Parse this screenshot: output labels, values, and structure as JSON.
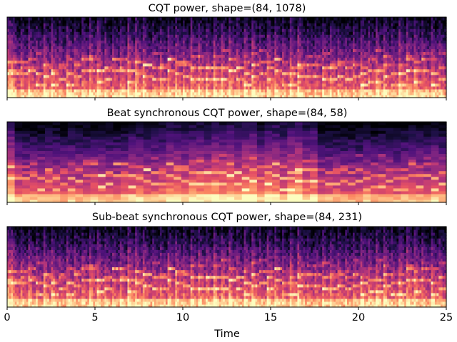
{
  "chart_data": [
    {
      "type": "heatmap",
      "title": "CQT power, shape=(84, 1078)",
      "shape": [
        84,
        1078
      ],
      "colormap": "magma",
      "xlim": [
        0,
        25
      ],
      "xticks": [
        0,
        5,
        10,
        15,
        20,
        25
      ],
      "tick_labels_visible": false,
      "yticks_visible": false
    },
    {
      "type": "heatmap",
      "title": "Beat synchronous CQT power, shape=(84, 58)",
      "shape": [
        84,
        58
      ],
      "colormap": "magma",
      "xlim": [
        0,
        25
      ],
      "xticks": [
        0,
        5,
        10,
        15,
        20,
        25
      ],
      "tick_labels_visible": false,
      "yticks_visible": false
    },
    {
      "type": "heatmap",
      "title": "Sub-beat synchronous CQT power, shape=(84, 231)",
      "shape": [
        84,
        231
      ],
      "colormap": "magma",
      "xlim": [
        0,
        25
      ],
      "xticks": [
        0,
        5,
        10,
        15,
        20,
        25
      ],
      "xtick_labels": [
        "0",
        "5",
        "10",
        "15",
        "20",
        "25"
      ],
      "xlabel": "Time",
      "yticks_visible": false
    }
  ]
}
